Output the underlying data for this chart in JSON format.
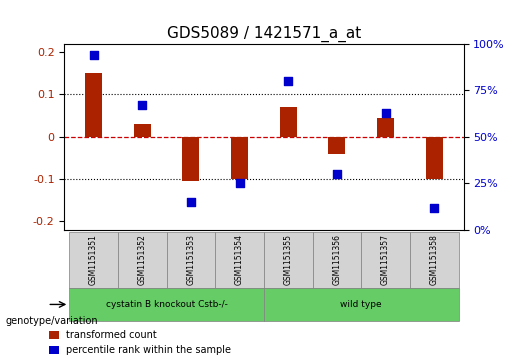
{
  "title": "GDS5089 / 1421571_a_at",
  "samples": [
    "GSM1151351",
    "GSM1151352",
    "GSM1151353",
    "GSM1151354",
    "GSM1151355",
    "GSM1151356",
    "GSM1151357",
    "GSM1151358"
  ],
  "transformed_count": [
    0.15,
    0.03,
    -0.105,
    -0.1,
    0.07,
    -0.04,
    0.045,
    -0.1
  ],
  "percentile_rank": [
    0.16,
    0.085,
    -0.13,
    -0.1,
    0.115,
    -0.095,
    0.065,
    -0.14
  ],
  "percentile_rank_pct": [
    94,
    67,
    15,
    25,
    80,
    30,
    63,
    12
  ],
  "ylim_left": [
    -0.22,
    0.22
  ],
  "ylim_right": [
    0,
    100
  ],
  "yticks_left": [
    -0.2,
    -0.1,
    0.0,
    0.1,
    0.2
  ],
  "yticks_right": [
    0,
    25,
    50,
    75,
    100
  ],
  "groups": [
    {
      "label": "cystatin B knockout Cstb-/-",
      "samples": [
        0,
        1,
        2,
        3
      ],
      "color": "#66cc66"
    },
    {
      "label": "wild type",
      "samples": [
        4,
        5,
        6,
        7
      ],
      "color": "#66cc66"
    }
  ],
  "group_row_label": "genotype/variation",
  "bar_color": "#aa2200",
  "dot_color": "#0000cc",
  "bar_width": 0.35,
  "dot_size": 40,
  "background_color": "#ffffff",
  "plot_bg_color": "#ffffff",
  "grid_color": "#000000",
  "zero_line_color": "#cc0000",
  "legend_bar_label": "transformed count",
  "legend_dot_label": "percentile rank within the sample",
  "xlabel_fontsize": 7,
  "title_fontsize": 11
}
